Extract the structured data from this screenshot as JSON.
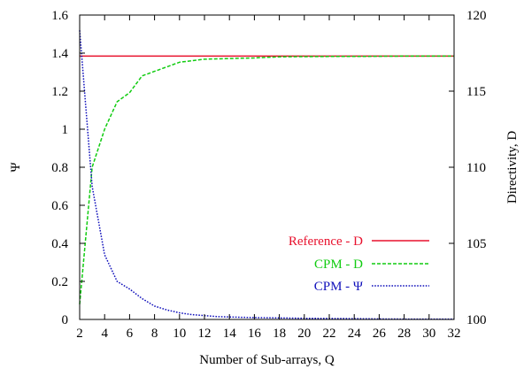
{
  "chart_data": {
    "type": "line",
    "xlabel": "Number of Sub-arrays,  Q",
    "ylabel_left": "Ψ",
    "ylabel_right": "Directivity,  D",
    "xlim": [
      2,
      32
    ],
    "ylim_left": [
      0,
      1.6
    ],
    "ylim_right": [
      100,
      120
    ],
    "x_ticks": [
      2,
      4,
      6,
      8,
      10,
      12,
      14,
      16,
      18,
      20,
      22,
      24,
      26,
      28,
      30,
      32
    ],
    "y_ticks_left": [
      0,
      0.2,
      0.4,
      0.6,
      0.8,
      1,
      1.2,
      1.4,
      1.6
    ],
    "y_ticks_right": [
      100,
      105,
      110,
      115,
      120
    ],
    "grid": false,
    "legend_position": "bottom-right",
    "series": [
      {
        "name": "Reference - D",
        "axis": "right",
        "color": "#e8112d",
        "dash": "solid",
        "x": [
          2,
          32
        ],
        "y": [
          117.3,
          117.3
        ]
      },
      {
        "name": "CPM - D",
        "axis": "right",
        "color": "#11cc11",
        "dash": "dashed",
        "x": [
          2,
          3,
          4,
          5,
          6,
          7,
          8,
          9,
          10,
          11,
          12,
          13,
          14,
          15,
          16,
          17,
          18,
          19,
          20,
          22,
          24,
          26,
          28,
          30,
          32
        ],
        "y": [
          101.0,
          110.0,
          112.5,
          114.3,
          114.9,
          116.0,
          116.3,
          116.6,
          116.9,
          117.0,
          117.1,
          117.12,
          117.14,
          117.16,
          117.18,
          117.22,
          117.25,
          117.26,
          117.27,
          117.28,
          117.28,
          117.29,
          117.3,
          117.3,
          117.3
        ]
      },
      {
        "name": "CPM - Ψ",
        "axis": "left",
        "color": "#1111bb",
        "dash": "dotted",
        "x": [
          2,
          3,
          4,
          5,
          6,
          7,
          8,
          9,
          10,
          11,
          12,
          13,
          14,
          15,
          16,
          18,
          20,
          22,
          24,
          26,
          28,
          30,
          32
        ],
        "y": [
          1.52,
          0.7,
          0.34,
          0.2,
          0.16,
          0.11,
          0.07,
          0.05,
          0.035,
          0.025,
          0.02,
          0.015,
          0.013,
          0.011,
          0.01,
          0.008,
          0.006,
          0.005,
          0.004,
          0.003,
          0.002,
          0.002,
          0.002
        ]
      }
    ]
  }
}
